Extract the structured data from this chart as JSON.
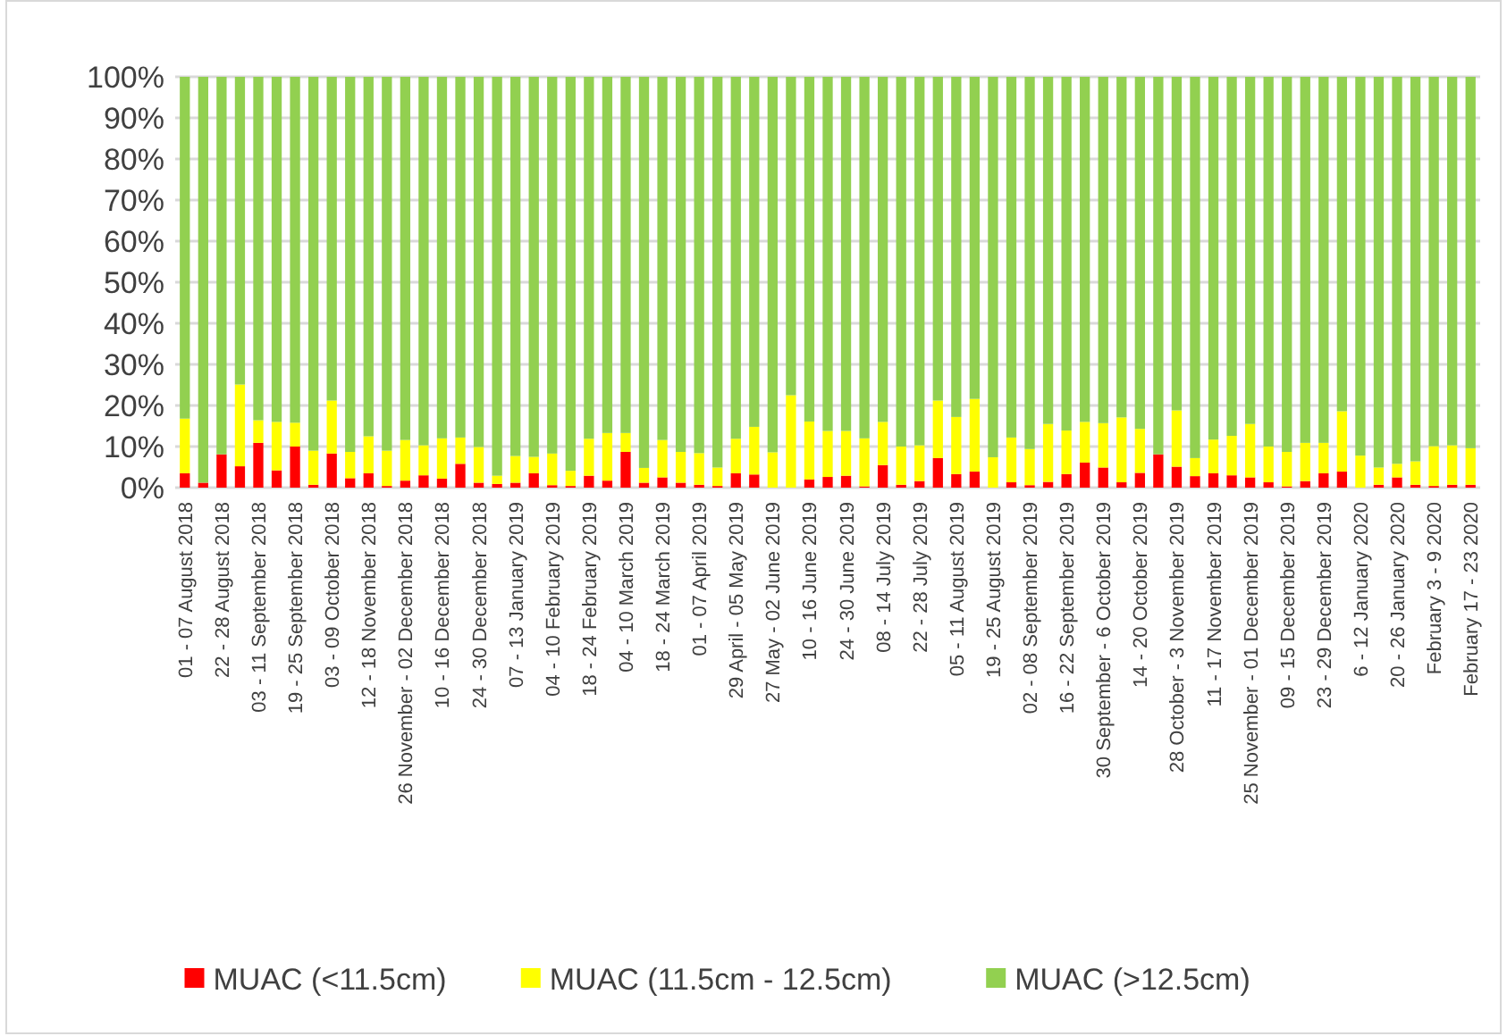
{
  "chart_data": {
    "type": "bar",
    "stacked": true,
    "categories": [
      "01 - 07 August 2018",
      null,
      "22 - 28 August 2018",
      null,
      "03 - 11 September 2018",
      null,
      "19 - 25 September 2018",
      null,
      "03 - 09 October 2018",
      null,
      "12 - 18 November 2018",
      null,
      "26 November - 02 December 2018",
      null,
      "10 - 16 December 2018",
      null,
      "24 - 30 December 2018",
      null,
      "07 - 13 January 2019",
      null,
      "04 - 10 February 2019",
      null,
      "18 - 24 February 2019",
      null,
      "04 - 10 March 2019",
      null,
      "18 - 24 March 2019",
      null,
      "01 - 07 April 2019",
      null,
      "29 April - 05 May 2019",
      null,
      "27 May - 02 June 2019",
      null,
      "10 - 16 June 2019",
      null,
      "24 - 30 June 2019",
      null,
      "08 - 14 July 2019",
      null,
      "22 - 28 July 2019",
      null,
      "05 - 11 August 2019",
      null,
      "19 - 25 August 2019",
      null,
      "02 - 08 September 2019",
      null,
      "16 - 22 September 2019",
      null,
      "30 September - 6 October 2019",
      null,
      "14 - 20 October 2019",
      null,
      "28 October - 3 November 2019",
      null,
      "11 - 17 November 2019",
      null,
      "25 November - 01 December 2019",
      null,
      "09 - 15 December 2019",
      null,
      "23 - 29 December 2019",
      null,
      "6 - 12 January 2020",
      null,
      "20 - 26 January 2020",
      null,
      "February 3 - 9 2020",
      null,
      "February 17 - 23 2020"
    ],
    "series": [
      {
        "name": "MUAC (<11.5cm)",
        "color": "#ff0000",
        "values": [
          3.5,
          1.2,
          8.1,
          5.2,
          10.9,
          4.2,
          10,
          0.7,
          8.3,
          2.3,
          3.5,
          0.4,
          1.7,
          3,
          2.2,
          5.8,
          1.2,
          0.9,
          1.2,
          3.5,
          0.6,
          0.4,
          2.9,
          1.7,
          8.7,
          1.2,
          2.5,
          1.2,
          0.7,
          0.4,
          3.5,
          3.2,
          0,
          0,
          2,
          2.6,
          2.9,
          0.3,
          5.5,
          0.7,
          1.6,
          7.2,
          3.3,
          3.9,
          0,
          1.3,
          0.6,
          1.4,
          3.3,
          6.1,
          4.9,
          1.3,
          3.6,
          8.1,
          5.1,
          2.8,
          3.5,
          3,
          2.5,
          1.3,
          0.3,
          1.6,
          3.5,
          3.9,
          0,
          0.7,
          2.5,
          0.7,
          0.4,
          0.7,
          0.7
        ]
      },
      {
        "name": "MUAC (11.5cm - 12.5cm)",
        "color": "#ffff00",
        "values": [
          13.3,
          0,
          0,
          19.9,
          5.5,
          11.8,
          5.8,
          8.3,
          12.9,
          6.4,
          9,
          8.6,
          9.9,
          7.3,
          9.8,
          6.4,
          8.7,
          2,
          6.5,
          4,
          7.7,
          3.7,
          9,
          11.6,
          4.6,
          3.6,
          9.1,
          7.5,
          7.7,
          4.5,
          8.4,
          11.6,
          8.6,
          22.5,
          14.1,
          11.2,
          10.9,
          11.7,
          10.5,
          9.3,
          8.7,
          14,
          13.9,
          17.7,
          7.4,
          10.9,
          8.8,
          14.1,
          10.6,
          9.9,
          10.8,
          15.8,
          10.7,
          0,
          13.7,
          4.4,
          8.2,
          9.6,
          13,
          8.7,
          8.4,
          9.3,
          7.4,
          14.7,
          7.8,
          4.2,
          3.3,
          5.7,
          9.7,
          9.6,
          8.9
        ]
      },
      {
        "name": "MUAC (>12.5cm)",
        "color": "#92d050",
        "values": [
          83.2,
          98.8,
          91.9,
          74.9,
          83.6,
          84,
          84.2,
          91,
          78.8,
          91.3,
          87.5,
          91,
          88.4,
          89.7,
          88,
          87.8,
          90.1,
          97.1,
          92.3,
          92.5,
          91.7,
          95.9,
          88.1,
          86.7,
          86.7,
          95.2,
          88.4,
          91.3,
          91.6,
          95.1,
          88.1,
          85.2,
          91.4,
          77.5,
          83.9,
          86.2,
          86.2,
          88,
          84,
          90,
          89.7,
          78.8,
          82.8,
          78.4,
          92.6,
          87.8,
          90.6,
          84.5,
          86.1,
          84,
          84.3,
          82.9,
          85.7,
          91.9,
          81.2,
          92.8,
          88.3,
          87.4,
          84.5,
          90,
          91.3,
          89.1,
          89.1,
          81.4,
          92.2,
          95.1,
          94.2,
          93.6,
          89.9,
          89.7,
          90.4
        ]
      }
    ],
    "ylim": [
      0,
      100
    ],
    "yticks": [
      {
        "value": 0,
        "label": "0%"
      },
      {
        "value": 10,
        "label": "10%"
      },
      {
        "value": 20,
        "label": "20%"
      },
      {
        "value": 30,
        "label": "30%"
      },
      {
        "value": 40,
        "label": "40%"
      },
      {
        "value": 50,
        "label": "50%"
      },
      {
        "value": 60,
        "label": "60%"
      },
      {
        "value": 70,
        "label": "70%"
      },
      {
        "value": 80,
        "label": "80%"
      },
      {
        "value": 90,
        "label": "90%"
      },
      {
        "value": 100,
        "label": "100%"
      }
    ],
    "grid": "y",
    "legend": "bottom"
  }
}
